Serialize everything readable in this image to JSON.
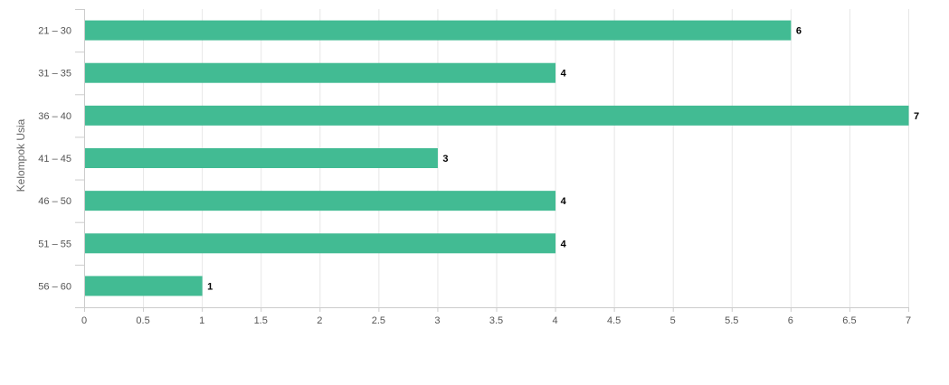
{
  "chart_data": {
    "type": "bar",
    "orientation": "horizontal",
    "categories": [
      "21 – 30",
      "31 – 35",
      "36 – 40",
      "41 – 45",
      "46 – 50",
      "51 – 55",
      "56 – 60"
    ],
    "values": [
      6,
      4,
      7,
      3,
      4,
      4,
      1
    ],
    "data_labels": [
      "6",
      "4",
      "7",
      "3",
      "4",
      "4",
      "1"
    ],
    "xlim": [
      0,
      7
    ],
    "x_ticks": [
      0,
      0.5,
      1,
      1.5,
      2,
      2.5,
      3,
      3.5,
      4,
      4.5,
      5,
      5.5,
      6,
      6.5,
      7
    ],
    "x_tick_labels": [
      "0",
      "0.5",
      "1",
      "1.5",
      "2",
      "2.5",
      "3",
      "3.5",
      "4",
      "4.5",
      "5",
      "5.5",
      "6",
      "6.5",
      "7"
    ],
    "ylabel": "Kelompok Usia",
    "xlabel": "",
    "grid": "vertical",
    "legend": "none",
    "colors": {
      "bar": "#42bb93",
      "grid": "#e6e6e6",
      "axis": "#cccccc",
      "tick_text": "#555555",
      "label_text": "#000000"
    }
  }
}
